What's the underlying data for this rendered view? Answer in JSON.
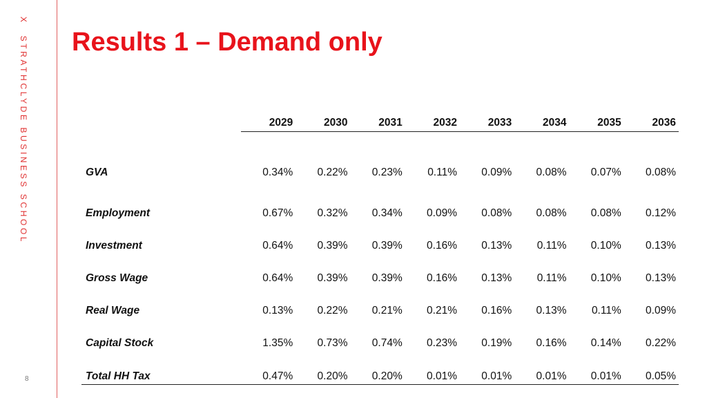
{
  "brand": {
    "mark": "X",
    "school": "STRATHCLYDE BUSINESS SCHOOL",
    "accent_color": "#e8131b"
  },
  "slide": {
    "title": "Results 1 – Demand only",
    "page_number": "8"
  },
  "table": {
    "years": [
      "2029",
      "2030",
      "2031",
      "2032",
      "2033",
      "2034",
      "2035",
      "2036"
    ],
    "rows": [
      {
        "label": "GVA",
        "values": [
          "0.34%",
          "0.22%",
          "0.23%",
          "0.11%",
          "0.09%",
          "0.08%",
          "0.07%",
          "0.08%"
        ]
      },
      {
        "label": "Employment",
        "values": [
          "0.67%",
          "0.32%",
          "0.34%",
          "0.09%",
          "0.08%",
          "0.08%",
          "0.08%",
          "0.12%"
        ]
      },
      {
        "label": "Investment",
        "values": [
          "0.64%",
          "0.39%",
          "0.39%",
          "0.16%",
          "0.13%",
          "0.11%",
          "0.10%",
          "0.13%"
        ]
      },
      {
        "label": "Gross Wage",
        "values": [
          "0.64%",
          "0.39%",
          "0.39%",
          "0.16%",
          "0.13%",
          "0.11%",
          "0.10%",
          "0.13%"
        ]
      },
      {
        "label": "Real Wage",
        "values": [
          "0.13%",
          "0.22%",
          "0.21%",
          "0.21%",
          "0.16%",
          "0.13%",
          "0.11%",
          "0.09%"
        ]
      },
      {
        "label": "Capital Stock",
        "values": [
          "1.35%",
          "0.73%",
          "0.74%",
          "0.23%",
          "0.19%",
          "0.16%",
          "0.14%",
          "0.22%"
        ]
      },
      {
        "label": "Total HH Tax",
        "values": [
          "0.47%",
          "0.20%",
          "0.20%",
          "0.01%",
          "0.01%",
          "0.01%",
          "0.01%",
          "0.05%"
        ]
      }
    ]
  }
}
